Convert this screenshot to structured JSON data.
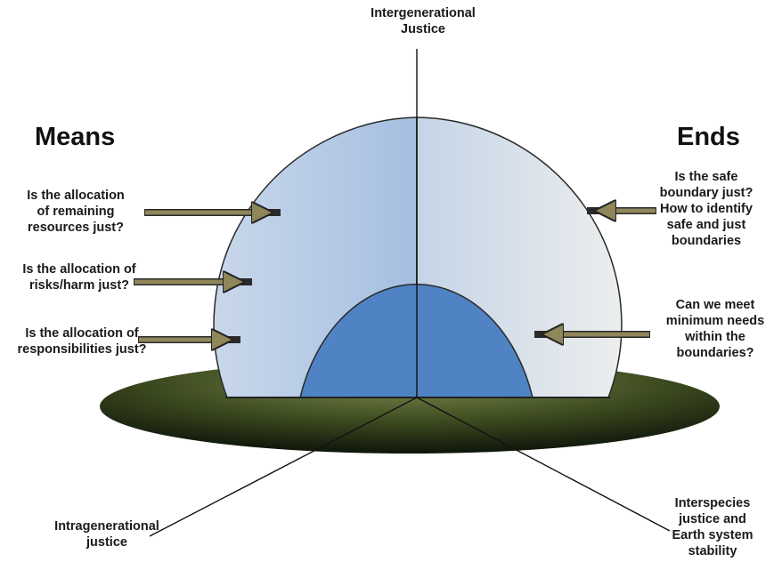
{
  "headings": {
    "means": "Means",
    "ends": "Ends"
  },
  "axes": {
    "top": "Intergenerational\nJustice",
    "bottom_left": "Intragenerational\njustice",
    "bottom_right": "Interspecies\njustice and\nEarth system\nstability"
  },
  "means_questions": [
    "Is the allocation\nof remaining\nresources just?",
    "Is the allocation of\nrisks/harm just?",
    "Is the allocation of\nresponsibilities just?"
  ],
  "ends_questions": [
    "Is the safe\nboundary just?\nHow to identify\nsafe and just\nboundaries",
    "Can we meet\nminimum needs\nwithin the\nboundaries?"
  ],
  "colors": {
    "outer_dome_left": "#a9c2e2",
    "outer_dome_right": "#e3e5e6",
    "inner_dome": "#4f83c3",
    "ground_light": "#7b8a4e",
    "ground_dark": "#0e150a",
    "arrow": "#8f865a"
  }
}
